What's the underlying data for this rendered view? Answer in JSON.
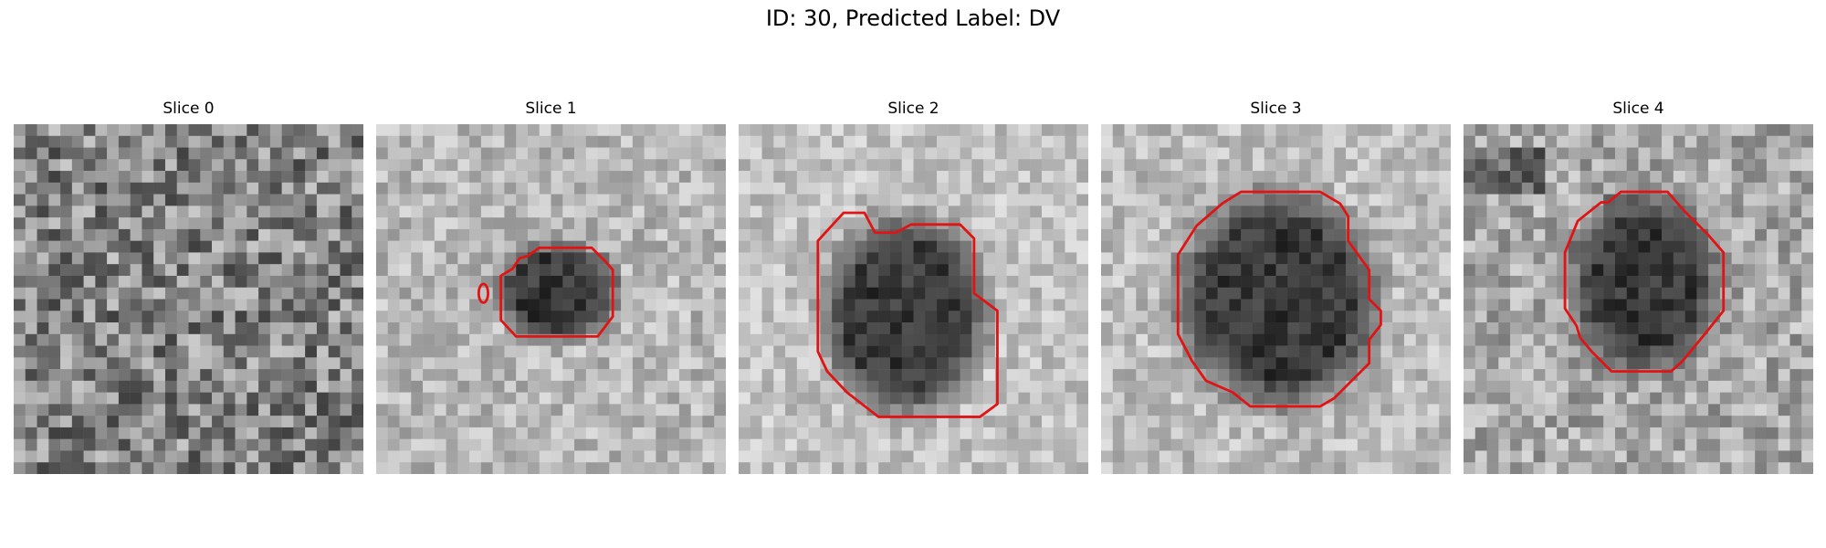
{
  "figure": {
    "title": "ID: 30, Predicted Label: DV"
  },
  "colors": {
    "contour": "#e01414",
    "background": "#ffffff"
  },
  "panels": [
    {
      "title": "Slice 0",
      "has_contour": false,
      "lesion": null
    },
    {
      "title": "Slice 1",
      "has_contour": true,
      "lesion": "small-dark-blob"
    },
    {
      "title": "Slice 2",
      "has_contour": true,
      "lesion": "large-irregular-blob"
    },
    {
      "title": "Slice 3",
      "has_contour": true,
      "lesion": "large-round-blob"
    },
    {
      "title": "Slice 4",
      "has_contour": true,
      "lesion": "medium-round-blob"
    }
  ]
}
